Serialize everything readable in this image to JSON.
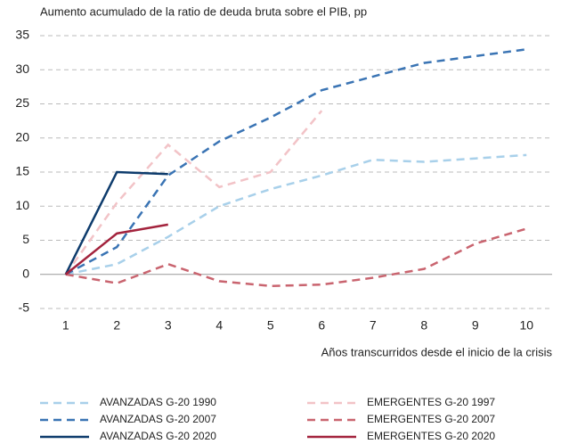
{
  "chart_data": {
    "type": "line",
    "title": "Aumento acumulado de la ratio de deuda bruta sobre el PIB, pp",
    "x_label": "Años transcurridos desde el inicio de la crisis",
    "x": [
      1,
      2,
      3,
      4,
      5,
      6,
      7,
      8,
      9,
      10
    ],
    "xlim": [
      0.5,
      10.5
    ],
    "xticks": [
      1,
      2,
      3,
      4,
      5,
      6,
      7,
      8,
      9,
      10
    ],
    "ylim": [
      -5,
      35
    ],
    "yticks": [
      -5,
      0,
      5,
      10,
      15,
      20,
      25,
      30,
      35
    ],
    "grid": true,
    "series": [
      {
        "name": "AVANZADAS G-20 1990",
        "color": "#a8d0ea",
        "dashed": true,
        "values": [
          0,
          1.5,
          5.5,
          10,
          12.5,
          14.5,
          16.8,
          16.5,
          17,
          17.5
        ]
      },
      {
        "name": "EMERGENTES G-20 1997",
        "color": "#f2c3c7",
        "dashed": true,
        "values": [
          0,
          10.5,
          19,
          12.8,
          15,
          24,
          null,
          null,
          null,
          null
        ]
      },
      {
        "name": "AVANZADAS G-20 2007",
        "color": "#3a74b4",
        "dashed": true,
        "values": [
          0,
          4,
          14.5,
          19.5,
          23,
          27,
          29,
          31,
          32,
          33
        ]
      },
      {
        "name": "EMERGENTES G-20 2007",
        "color": "#c9646f",
        "dashed": true,
        "values": [
          0,
          -1.3,
          1.5,
          -1,
          -1.7,
          -1.5,
          -0.5,
          0.8,
          4.5,
          6.7
        ]
      },
      {
        "name": "AVANZADAS G-20 2020",
        "color": "#0d3b6c",
        "dashed": false,
        "values": [
          0,
          15,
          14.7,
          null,
          null,
          null,
          null,
          null,
          null,
          null
        ]
      },
      {
        "name": "EMERGENTES G-20 2020",
        "color": "#a3233d",
        "dashed": false,
        "values": [
          0,
          6,
          7.3,
          null,
          null,
          null,
          null,
          null,
          null,
          null
        ]
      }
    ]
  }
}
